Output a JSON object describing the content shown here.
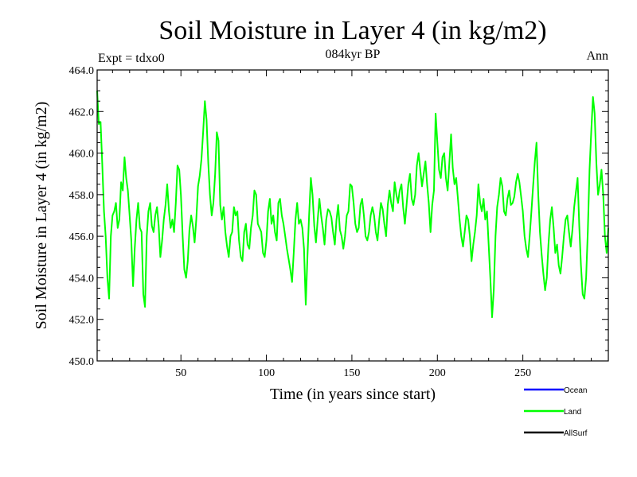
{
  "chart_data": {
    "type": "line",
    "title": "Soil Moisture in Layer 4 (in kg/m2)",
    "subtitle": "084kyr BP",
    "left_label": "Expt = tdxo0",
    "right_label": "Ann",
    "xlabel": "Time (in years since start)",
    "ylabel": "Soil Moisture in Layer 4 (in kg/m2)",
    "xlim": [
      1,
      300
    ],
    "ylim": [
      450.0,
      464.0
    ],
    "x_ticks": [
      50,
      100,
      150,
      200,
      250
    ],
    "y_ticks": [
      450.0,
      452.0,
      454.0,
      456.0,
      458.0,
      460.0,
      462.0,
      464.0
    ],
    "grid": false,
    "legend_position": "bottom-right",
    "series": [
      {
        "name": "Ocean",
        "color": "#0000ff",
        "values": []
      },
      {
        "name": "Land",
        "color": "#00ff00",
        "x_start": 1,
        "x_step": 1,
        "values": [
          463.0,
          461.4,
          461.5,
          459.5,
          457.2,
          456.0,
          454.0,
          453.0,
          456.0,
          457.0,
          457.2,
          457.6,
          456.4,
          456.8,
          458.6,
          458.2,
          459.8,
          458.8,
          458.2,
          457.0,
          455.8,
          453.6,
          455.4,
          456.8,
          457.6,
          456.4,
          456.2,
          453.2,
          452.6,
          456.0,
          457.2,
          457.6,
          456.5,
          456.2,
          457.0,
          457.4,
          456.5,
          455.0,
          455.8,
          456.8,
          457.5,
          458.5,
          457.2,
          456.4,
          456.8,
          456.2,
          457.6,
          459.4,
          459.2,
          458.0,
          456.0,
          454.4,
          454.0,
          454.8,
          456.3,
          457.0,
          456.5,
          455.7,
          456.8,
          458.4,
          458.9,
          459.7,
          461.0,
          462.5,
          461.6,
          459.5,
          458.0,
          457.0,
          457.6,
          459.0,
          461.0,
          460.6,
          457.5,
          456.8,
          457.4,
          456.2,
          455.5,
          455.0,
          456.0,
          456.2,
          457.4,
          457.0,
          457.2,
          455.8,
          455.0,
          454.8,
          456.2,
          456.6,
          455.6,
          455.4,
          456.4,
          457.0,
          458.2,
          458.0,
          456.6,
          456.4,
          456.2,
          455.2,
          455.0,
          455.8,
          457.2,
          457.8,
          456.6,
          457.0,
          456.2,
          455.8,
          457.6,
          457.8,
          457.0,
          456.6,
          456.0,
          455.4,
          454.9,
          454.4,
          453.8,
          455.2,
          456.8,
          457.6,
          456.6,
          456.8,
          456.4,
          455.4,
          452.7,
          455.0,
          457.0,
          458.8,
          458.0,
          456.5,
          455.7,
          456.8,
          457.8,
          457.0,
          456.4,
          455.6,
          456.8,
          457.3,
          457.2,
          456.9,
          456.2,
          455.6,
          456.8,
          457.5,
          456.3,
          456.0,
          455.4,
          456.0,
          457.0,
          457.2,
          458.5,
          458.4,
          457.6,
          456.6,
          456.2,
          456.4,
          457.5,
          457.8,
          457.0,
          456.0,
          455.8,
          456.2,
          457.0,
          457.4,
          457.0,
          456.2,
          455.8,
          456.8,
          457.6,
          457.3,
          456.6,
          456.0,
          457.5,
          458.2,
          457.6,
          457.2,
          458.6,
          458.0,
          457.6,
          458.2,
          458.5,
          457.4,
          456.6,
          457.5,
          458.5,
          459.0,
          457.8,
          457.5,
          458.0,
          459.4,
          460.0,
          459.2,
          458.4,
          459.0,
          459.6,
          458.5,
          457.6,
          456.2,
          457.5,
          458.2,
          461.9,
          460.5,
          459.2,
          458.8,
          459.8,
          460.0,
          458.8,
          458.2,
          459.5,
          460.9,
          459.3,
          458.5,
          458.8,
          457.8,
          456.8,
          456.0,
          455.5,
          456.2,
          457.0,
          456.8,
          456.0,
          454.8,
          455.6,
          456.2,
          457.0,
          458.5,
          457.6,
          457.2,
          457.8,
          456.8,
          457.2,
          455.6,
          454.0,
          452.1,
          453.4,
          456.0,
          457.4,
          458.0,
          458.8,
          458.4,
          457.2,
          457.0,
          457.8,
          458.2,
          457.5,
          457.6,
          457.9,
          458.6,
          459.0,
          458.6,
          457.9,
          457.2,
          456.0,
          455.4,
          455.0,
          456.0,
          457.2,
          458.4,
          459.6,
          460.5,
          458.0,
          456.2,
          455.1,
          454.2,
          453.4,
          454.0,
          455.6,
          456.8,
          457.4,
          456.4,
          455.2,
          455.6,
          454.6,
          454.2,
          455.0,
          456.0,
          456.8,
          457.0,
          456.2,
          455.5,
          456.3,
          457.4,
          458.1,
          458.8,
          456.5,
          454.6,
          453.2,
          453.0,
          454.0,
          456.2,
          459.2,
          461.0,
          462.7,
          461.9,
          459.5,
          458.0,
          458.5,
          459.2,
          458.0,
          456.0,
          455.2,
          456.4
        ]
      },
      {
        "name": "AllSurf",
        "color": "#000000",
        "values": []
      }
    ]
  }
}
